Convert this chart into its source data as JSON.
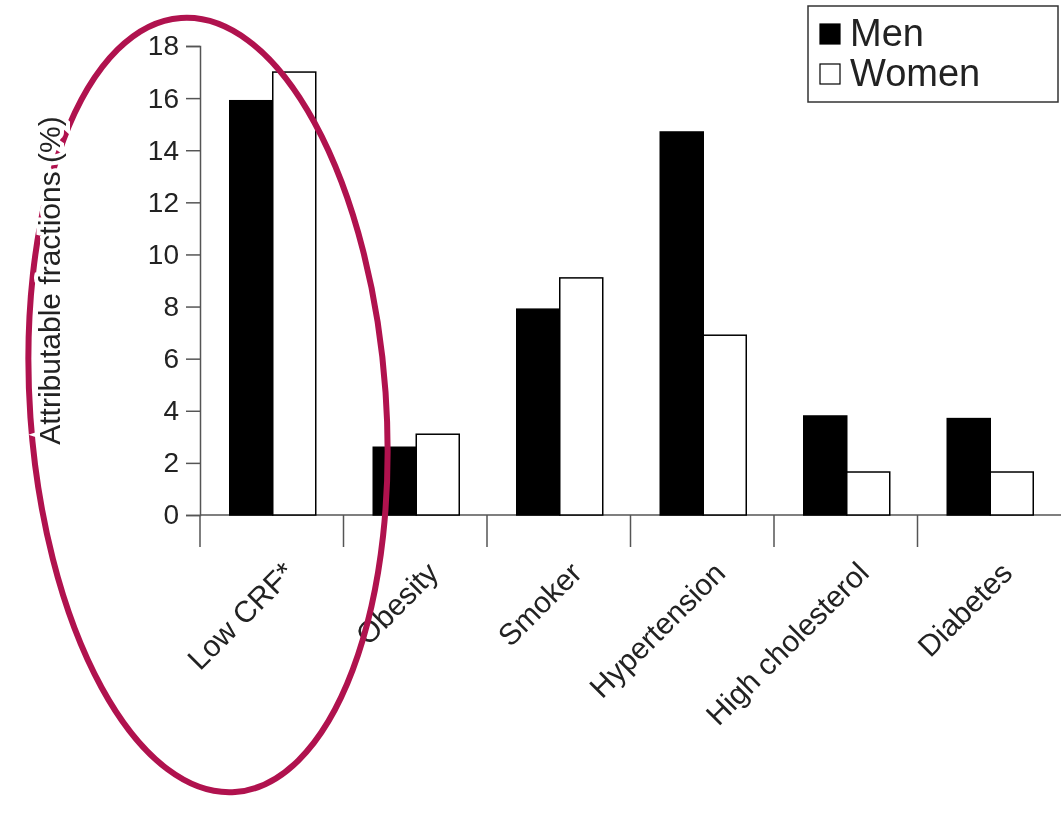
{
  "chart_data": {
    "type": "bar",
    "ylabel": "Attributable fractions (%)",
    "categories": [
      "Low CRF*",
      "Obesity",
      "Smoker",
      "Hypertension",
      "High cholesterol",
      "Diabetes"
    ],
    "series": [
      {
        "name": "Men",
        "color": "#000000",
        "values": [
          15.9,
          2.6,
          7.9,
          14.7,
          3.8,
          3.7
        ]
      },
      {
        "name": "Women",
        "color": "#ffffff",
        "values": [
          17.0,
          3.1,
          9.1,
          6.9,
          1.65,
          1.65
        ]
      }
    ],
    "ylim": [
      0,
      18
    ],
    "yticks": [
      0,
      2,
      4,
      6,
      8,
      10,
      12,
      14,
      16,
      18
    ],
    "legend": "top right"
  }
}
